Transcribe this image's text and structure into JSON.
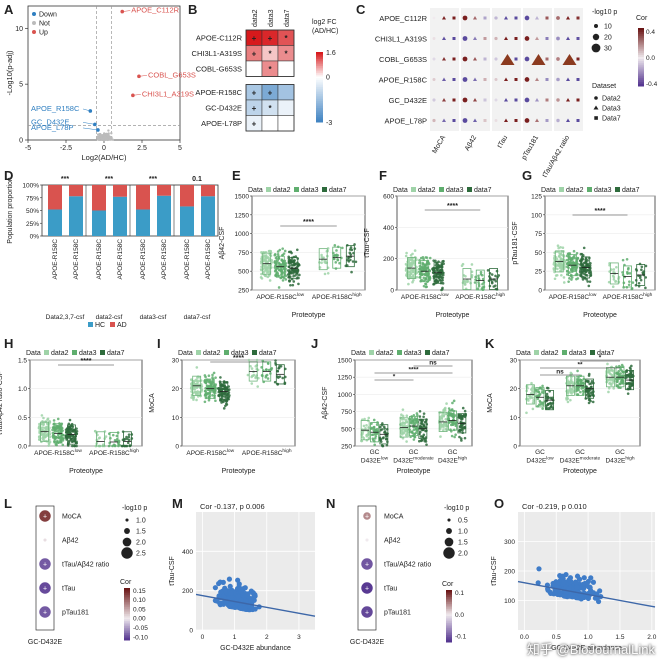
{
  "panel_labels": [
    "A",
    "B",
    "C",
    "D",
    "E",
    "F",
    "G",
    "H",
    "I",
    "J",
    "K",
    "L",
    "M",
    "N",
    "O"
  ],
  "watermark": "知乎 @BioJournalLink",
  "colors": {
    "down": "#2f7fc1",
    "up": "#d9534f",
    "not": "#bbbbbb",
    "hc": "#3b9cc7",
    "ad": "#d9534f",
    "d2": "#9fd3a8",
    "d3": "#5fae6e",
    "d7": "#2e6b3c",
    "line": "#3d67a8",
    "scatter": "#3f7cc8"
  },
  "chart_data": [
    {
      "id": "A",
      "type": "scatter",
      "title": "",
      "xlabel": "Log2(AD/HC)",
      "ylabel": "-Log10(p-adj)",
      "xlim": [
        -5,
        5
      ],
      "ylim": [
        0,
        12
      ],
      "xticks": [
        "-5",
        "-2.5",
        "0",
        "2.5",
        "5"
      ],
      "yticks": [
        "0",
        "5",
        "10"
      ],
      "legend": [
        "Down",
        "Not",
        "Up"
      ],
      "labels": [
        {
          "text": "APOE_C112R",
          "x": 1.2,
          "y": 11.5,
          "group": "up"
        },
        {
          "text": "COBL_G653S",
          "x": 2.3,
          "y": 5.7,
          "group": "up"
        },
        {
          "text": "CHI3L1_A319S",
          "x": 1.9,
          "y": 4.0,
          "group": "up"
        },
        {
          "text": "APOE_R158C",
          "x": -0.9,
          "y": 2.6,
          "group": "down"
        },
        {
          "text": "GC_D432E",
          "x": -0.6,
          "y": 1.4,
          "group": "down"
        },
        {
          "text": "APOE_L78P",
          "x": -0.4,
          "y": 0.9,
          "group": "down"
        }
      ]
    },
    {
      "id": "B",
      "type": "heatmap",
      "columns": [
        "data2",
        "data3",
        "data7"
      ],
      "rows": [
        "APOE-C112R",
        "CHI3L1-A319S",
        "COBL-G653S",
        "APOE-R158C",
        "GC-D432E",
        "APOE-L78P"
      ],
      "values": [
        [
          1.6,
          1.5,
          1.2
        ],
        [
          0.9,
          0.4,
          0.8
        ],
        [
          0.0,
          0.8,
          0.0
        ],
        [
          -1.3,
          -2.0,
          -1.4
        ],
        [
          -1.0,
          -0.7,
          -0.3
        ],
        [
          -0.3,
          0.0,
          0.0
        ]
      ],
      "marks": [
        [
          "+",
          "+",
          "*"
        ],
        [
          "+",
          "*",
          "*"
        ],
        [
          "",
          "*",
          ""
        ],
        [
          "+",
          "+",
          ""
        ],
        [
          "+",
          "*",
          ""
        ],
        [
          "+",
          "",
          ""
        ]
      ],
      "colorbar": {
        "title": "log2 FC (AD/HC)",
        "ticks": [
          "1.6",
          "0",
          "-3"
        ]
      }
    },
    {
      "id": "C",
      "type": "scatter",
      "subtype": "dot-matrix",
      "rows": [
        "APOE_C112R",
        "CHI3L1_A319S",
        "COBL_G653S",
        "APOE_R158C",
        "GC_D432E",
        "APOE_L78P"
      ],
      "columns": [
        "MoCA",
        "Aβ42",
        "tTau",
        "pTau181",
        "tTau/Aβ42 ratio"
      ],
      "size_legend": {
        "title": "-log10 p",
        "values": [
          "10",
          "20",
          "30"
        ]
      },
      "color_legend": {
        "title": "Cor",
        "ticks": [
          "0.4",
          "0.0",
          "-0.4"
        ]
      },
      "shape_legend": {
        "title": "Dataset",
        "items": [
          "Data2",
          "Data3",
          "Data7"
        ]
      },
      "big_triangles": [
        {
          "row": "COBL_G653S",
          "column": "tTau"
        },
        {
          "row": "COBL_G653S",
          "column": "pTau181"
        },
        {
          "row": "COBL_G653S",
          "column": "tTau/Aβ42 ratio"
        }
      ]
    },
    {
      "id": "D",
      "type": "bar",
      "subtype": "stacked-percent",
      "categories": [
        "APOE-R158C^low",
        "APOE-R158C^high",
        "APOE-R158C^low",
        "APOE-R158C^high",
        "APOE-R158C^low",
        "APOE-R158C^high",
        "APOE-R158C^low",
        "APOE-R158C^high"
      ],
      "groups": [
        "Data2,3,7-csf",
        "data2-csf",
        "data3-csf",
        "data7-csf"
      ],
      "significance": [
        "***",
        "***",
        "***",
        "0.1"
      ],
      "series": [
        {
          "name": "HC",
          "values": [
            52,
            78,
            50,
            77,
            52,
            79,
            58,
            78
          ]
        },
        {
          "name": "AD",
          "values": [
            48,
            22,
            50,
            23,
            48,
            21,
            42,
            22
          ]
        }
      ],
      "ylabel": "Population proportion",
      "yticks": [
        "0%",
        "25%",
        "50%",
        "75%",
        "100%"
      ]
    },
    {
      "id": "E",
      "type": "scatter",
      "subtype": "box-strip",
      "ylabel": "Aβ42-CSF",
      "xlabel": "Proteotype",
      "categories": [
        "APOE-R158C^low",
        "APOE-R158C^high"
      ],
      "yticks": [
        "250",
        "500",
        "750",
        "1000",
        "1250",
        "1500"
      ],
      "ylim": [
        250,
        1500
      ],
      "legend": [
        "data2",
        "data3",
        "data7"
      ],
      "medians": [
        [
          600,
          560,
          540
        ],
        [
          660,
          680,
          700
        ]
      ],
      "significance": "****"
    },
    {
      "id": "F",
      "type": "scatter",
      "subtype": "box-strip",
      "ylabel": "tTau-CSF",
      "xlabel": "Proteotype",
      "categories": [
        "APOE-R158C^low",
        "APOE-R158C^high"
      ],
      "yticks": [
        "0",
        "200",
        "400",
        "600"
      ],
      "ylim": [
        0,
        600
      ],
      "legend": [
        "data2",
        "data3",
        "data7"
      ],
      "medians": [
        [
          140,
          120,
          110
        ],
        [
          70,
          60,
          70
        ]
      ],
      "significance": "****"
    },
    {
      "id": "G",
      "type": "scatter",
      "subtype": "box-strip",
      "ylabel": "pTau181-CSF",
      "xlabel": "Proteotype",
      "categories": [
        "APOE-R158C^low",
        "APOE-R158C^high"
      ],
      "yticks": [
        "0",
        "25",
        "50",
        "75",
        "100",
        "125"
      ],
      "ylim": [
        0,
        125
      ],
      "legend": [
        "data2",
        "data3",
        "data7"
      ],
      "medians": [
        [
          38,
          33,
          30
        ],
        [
          22,
          18,
          20
        ]
      ],
      "significance": "****"
    },
    {
      "id": "H",
      "type": "scatter",
      "subtype": "box-strip",
      "ylabel": "tTau/Aβ42 ratio-CSF",
      "xlabel": "Proteotype",
      "categories": [
        "APOE-R158C^low",
        "APOE-R158C^high"
      ],
      "yticks": [
        "0.0",
        "0.5",
        "1.0",
        "1.5"
      ],
      "ylim": [
        0,
        1.5
      ],
      "legend": [
        "data2",
        "data3",
        "data7"
      ],
      "medians": [
        [
          0.25,
          0.22,
          0.2
        ],
        [
          0.08,
          0.07,
          0.08
        ]
      ],
      "significance": "****"
    },
    {
      "id": "I",
      "type": "scatter",
      "subtype": "box-strip",
      "ylabel": "MoCA",
      "xlabel": "Proteotype",
      "categories": [
        "APOE-R158C^low",
        "APOE-R158C^high"
      ],
      "yticks": [
        "0",
        "10",
        "20",
        "30"
      ],
      "ylim": [
        0,
        30
      ],
      "legend": [
        "data2",
        "data3",
        "data7"
      ],
      "medians": [
        [
          21,
          20,
          19
        ],
        [
          26,
          26,
          25
        ]
      ],
      "significance": "****"
    },
    {
      "id": "J",
      "type": "scatter",
      "subtype": "box-strip",
      "ylabel": "Aβ42-CSF",
      "xlabel": "Proteotype",
      "categories": [
        "GC D432E^low",
        "GC D432E^moderate",
        "GC D432E^high"
      ],
      "yticks": [
        "250",
        "500",
        "750",
        "1000",
        "1250",
        "1500"
      ],
      "ylim": [
        250,
        1500
      ],
      "legend": [
        "data2",
        "data3",
        "data7"
      ],
      "medians": [
        [
          480,
          450,
          420
        ],
        [
          520,
          540,
          500
        ],
        [
          600,
          620,
          580
        ]
      ],
      "comparisons": [
        {
          "from": 0,
          "to": 1,
          "label": "*"
        },
        {
          "from": 0,
          "to": 2,
          "label": "****"
        },
        {
          "from": 1,
          "to": 2,
          "label": "ns"
        }
      ]
    },
    {
      "id": "K",
      "type": "scatter",
      "subtype": "box-strip",
      "ylabel": "MoCA",
      "xlabel": "Proteotype",
      "categories": [
        "GC D432E^low",
        "GC D432E^moderate",
        "GC D432E^high"
      ],
      "yticks": [
        "0",
        "10",
        "20",
        "30"
      ],
      "ylim": [
        0,
        30
      ],
      "legend": [
        "data2",
        "data3",
        "data7"
      ],
      "medians": [
        [
          18,
          17,
          16
        ],
        [
          21,
          21,
          20
        ],
        [
          24,
          24,
          23
        ]
      ],
      "comparisons": [
        {
          "from": 0,
          "to": 1,
          "label": "ns"
        },
        {
          "from": 0,
          "to": 2,
          "label": "**"
        },
        {
          "from": 1,
          "to": 2,
          "label": "*"
        }
      ]
    },
    {
      "id": "L",
      "type": "scatter",
      "subtype": "dot-column",
      "column": "GC-D432E",
      "rows": [
        "MoCA",
        "Aβ42",
        "tTau/Aβ42 ratio",
        "tTau",
        "pTau181"
      ],
      "cor": [
        0.13,
        0.01,
        -0.09,
        -0.1,
        -0.09
      ],
      "neglog10p": [
        2.5,
        1.0,
        2.5,
        2.5,
        2.5
      ],
      "size_legend": {
        "title": "-log10 p",
        "values": [
          "1.0",
          "1.5",
          "2.0",
          "2.5"
        ]
      },
      "color_legend": {
        "title": "Cor",
        "ticks": [
          "0.15",
          "0.10",
          "0.05",
          "0.00",
          "-0.05",
          "-0.10"
        ]
      }
    },
    {
      "id": "M",
      "type": "scatter",
      "title": "Cor -0.137, p 0.006",
      "xlabel": "GC-D432E abundance",
      "ylabel": "tTau-CSF",
      "xlim": [
        -0.2,
        3.5
      ],
      "ylim": [
        0,
        600
      ],
      "xticks": [
        "0",
        "1",
        "2",
        "3"
      ],
      "yticks": [
        "0",
        "200",
        "400"
      ],
      "fit": {
        "slope": -30,
        "intercept": 175
      }
    },
    {
      "id": "N",
      "type": "scatter",
      "subtype": "dot-column",
      "column": "GC-D432E",
      "rows": [
        "MoCA",
        "Aβ42",
        "tTau/Aβ42 ratio",
        "tTau",
        "pTau181"
      ],
      "cor": [
        0.05,
        0.0,
        -0.1,
        -0.12,
        -0.11
      ],
      "neglog10p": [
        1.3,
        0.5,
        2.0,
        2.0,
        2.0
      ],
      "size_legend": {
        "title": "-log10 p",
        "values": [
          "0.5",
          "1.0",
          "1.5",
          "2.0"
        ]
      },
      "color_legend": {
        "title": "Cor",
        "ticks": [
          "0.1",
          "0.0",
          "-0.1"
        ]
      }
    },
    {
      "id": "O",
      "type": "scatter",
      "title": "Cor -0.219, p 0.010",
      "xlabel": "GC-D432E abundance",
      "ylabel": "tTau-CSF",
      "xlim": [
        -0.1,
        2.05
      ],
      "ylim": [
        0,
        400
      ],
      "xticks": [
        "0.0",
        "0.5",
        "1.0",
        "1.5",
        "2.0"
      ],
      "yticks": [
        "100",
        "200",
        "300"
      ],
      "fit": {
        "slope": -40,
        "intercept": 160
      }
    }
  ]
}
